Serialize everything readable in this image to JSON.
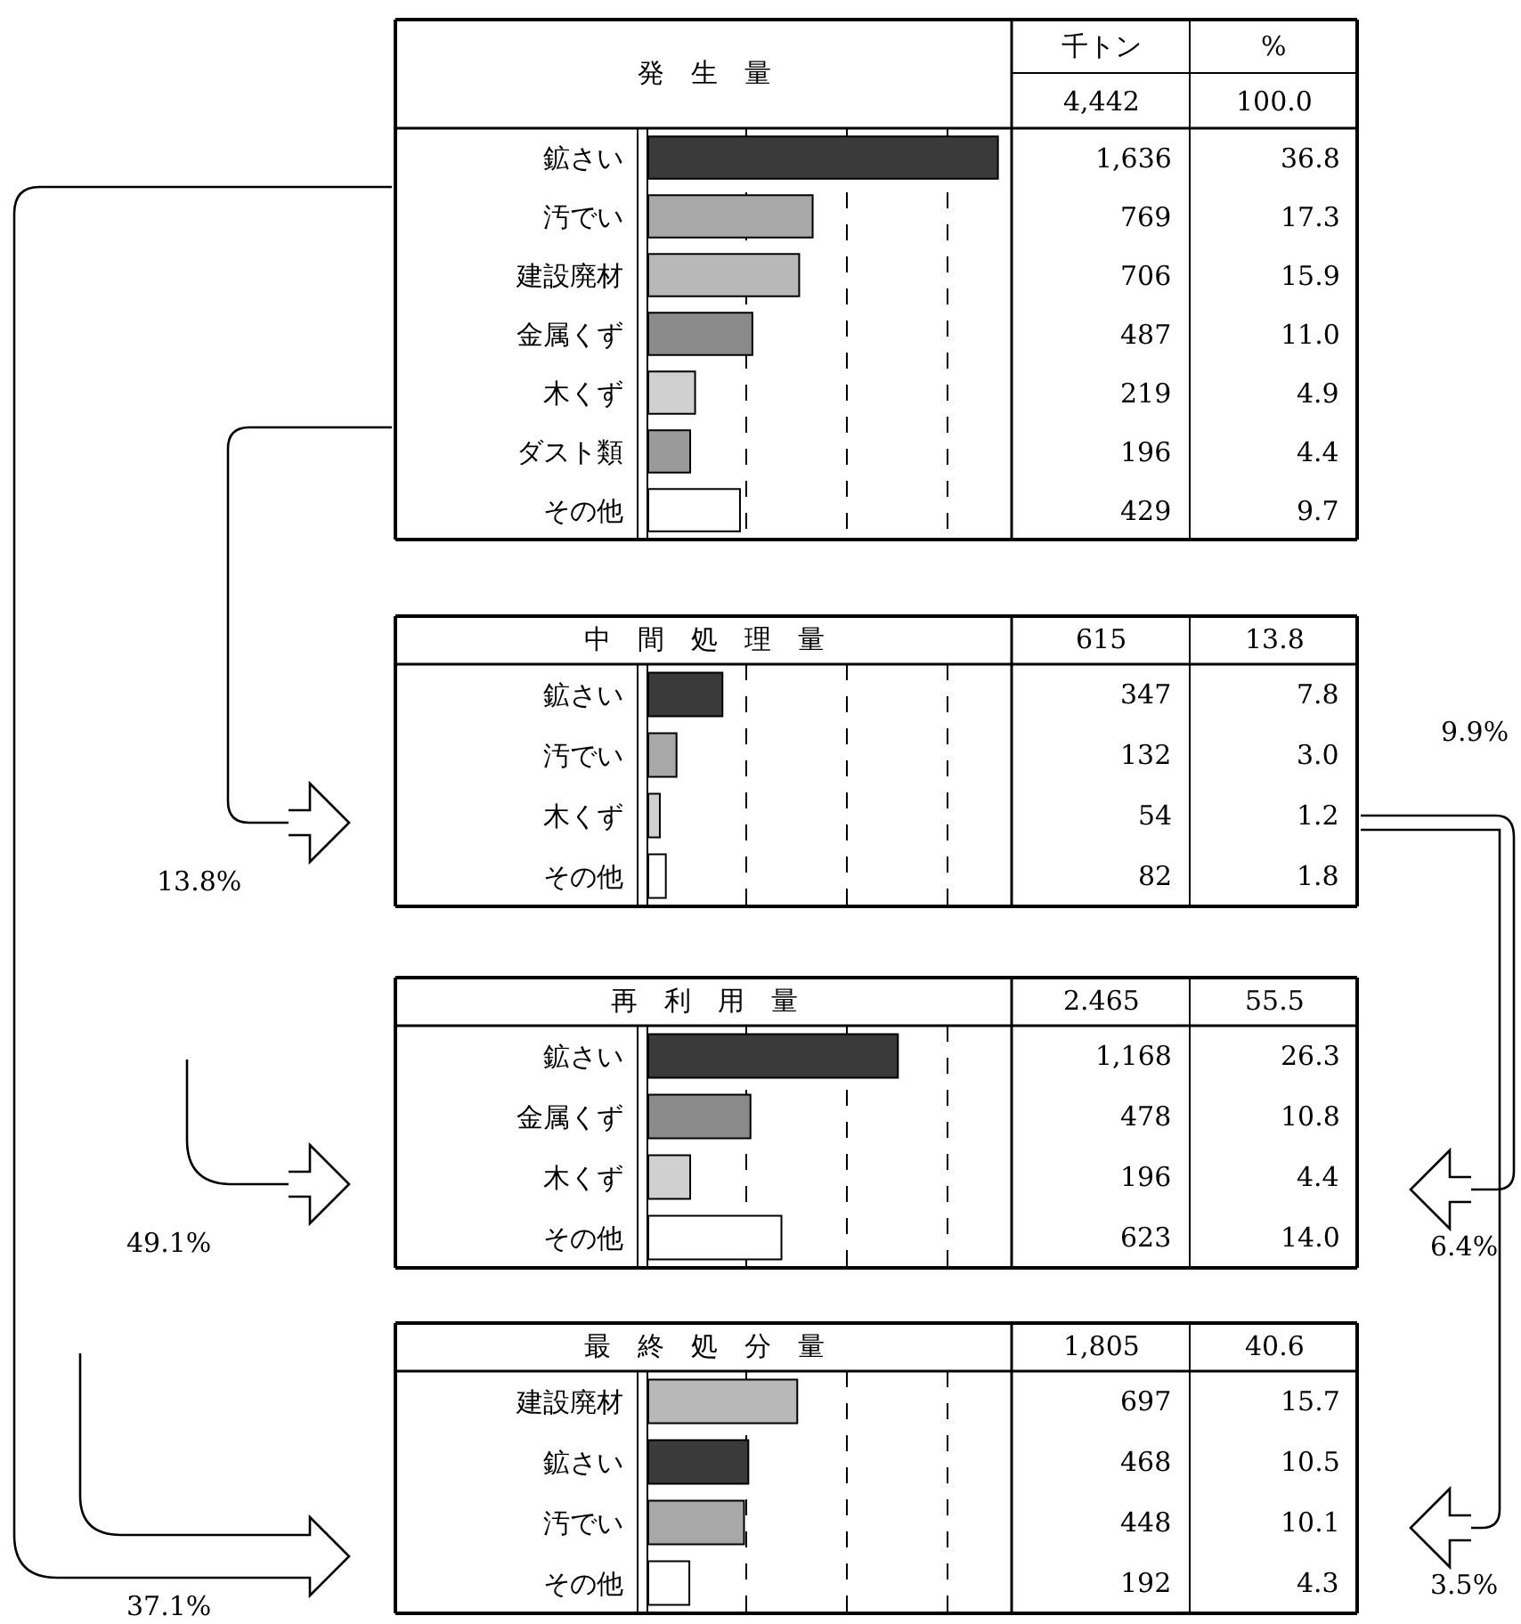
{
  "chart_data": [
    {
      "type": "bar",
      "orientation": "horizontal",
      "title": "発　生　量",
      "categories": [
        "鉱さい",
        "汚でい",
        "建設廃材",
        "金属くず",
        "木くず",
        "ダスト類",
        "その他"
      ],
      "values": [
        1636,
        769,
        706,
        487,
        219,
        196,
        429
      ],
      "value_labels": [
        "1,636",
        "769",
        "706",
        "487",
        "219",
        "196",
        "429"
      ],
      "colors": [
        "#3a3a3a",
        "#a8a8a8",
        "#b8b8b8",
        "#8a8a8a",
        "#d0d0d0",
        "#9a9a9a",
        "#ffffff"
      ],
      "xlim": [
        0,
        1700
      ],
      "xticks": [
        {
          "value": 460,
          "label": null
        },
        {
          "value": 930,
          "label": null
        },
        {
          "value": 1400,
          "label": null
        }
      ],
      "grid": "x",
      "tick_labels": "y",
      "annotations": [
        "千トン",
        "%",
        "4,442",
        "100.0",
        "36.8",
        "17.3",
        "15.9",
        "11.0",
        "4.9",
        "4.4",
        "9.7"
      ]
    },
    {
      "type": "bar",
      "orientation": "horizontal",
      "title": "中　間　処　理　量",
      "categories": [
        "鉱さい",
        "汚でい",
        "木くず",
        "その他"
      ],
      "values": [
        347,
        132,
        54,
        82
      ],
      "value_labels": [
        "347",
        "132",
        "54",
        "82"
      ],
      "colors": [
        "#3a3a3a",
        "#a8a8a8",
        "#d0d0d0",
        "#ffffff"
      ],
      "xlim": [
        0,
        1700
      ],
      "xticks": [
        {
          "value": 460,
          "label": null
        },
        {
          "value": 930,
          "label": null
        },
        {
          "value": 1400,
          "label": null
        }
      ],
      "grid": "x",
      "tick_labels": "y",
      "annotations": [
        "615",
        "13.8",
        "7.8",
        "3.0",
        "1.2",
        "1.8",
        "13.8%",
        "9.9%"
      ]
    },
    {
      "type": "bar",
      "orientation": "horizontal",
      "title": "再　利　用　量",
      "categories": [
        "鉱さい",
        "金属くず",
        "木くず",
        "その他"
      ],
      "values": [
        1168,
        478,
        196,
        623
      ],
      "value_labels": [
        "1,168",
        "478",
        "196",
        "623"
      ],
      "colors": [
        "#3a3a3a",
        "#8a8a8a",
        "#d0d0d0",
        "#ffffff"
      ],
      "xlim": [
        0,
        1700
      ],
      "xticks": [
        {
          "value": 460,
          "label": null
        },
        {
          "value": 930,
          "label": null
        },
        {
          "value": 1400,
          "label": null
        }
      ],
      "grid": "x",
      "tick_labels": "y",
      "annotations": [
        "2.465",
        "55.5",
        "26.3",
        "10.8",
        "4.4",
        "14.0",
        "49.1%",
        "6.4%"
      ]
    },
    {
      "type": "bar",
      "orientation": "horizontal",
      "title": "最　終　処　分　量",
      "categories": [
        "建設廃材",
        "鉱さい",
        "汚でい",
        "その他"
      ],
      "values": [
        697,
        468,
        448,
        192
      ],
      "value_labels": [
        "697",
        "468",
        "448",
        "192"
      ],
      "colors": [
        "#b8b8b8",
        "#3a3a3a",
        "#a8a8a8",
        "#ffffff"
      ],
      "xlim": [
        0,
        1700
      ],
      "xticks": [
        {
          "value": 460,
          "label": null
        },
        {
          "value": 930,
          "label": null
        },
        {
          "value": 1400,
          "label": null
        }
      ],
      "grid": "x",
      "tick_labels": "y",
      "annotations": [
        "1,805",
        "40.6",
        "15.7",
        "10.5",
        "10.1",
        "4.3",
        "37.1%",
        "3.5%"
      ]
    }
  ]
}
